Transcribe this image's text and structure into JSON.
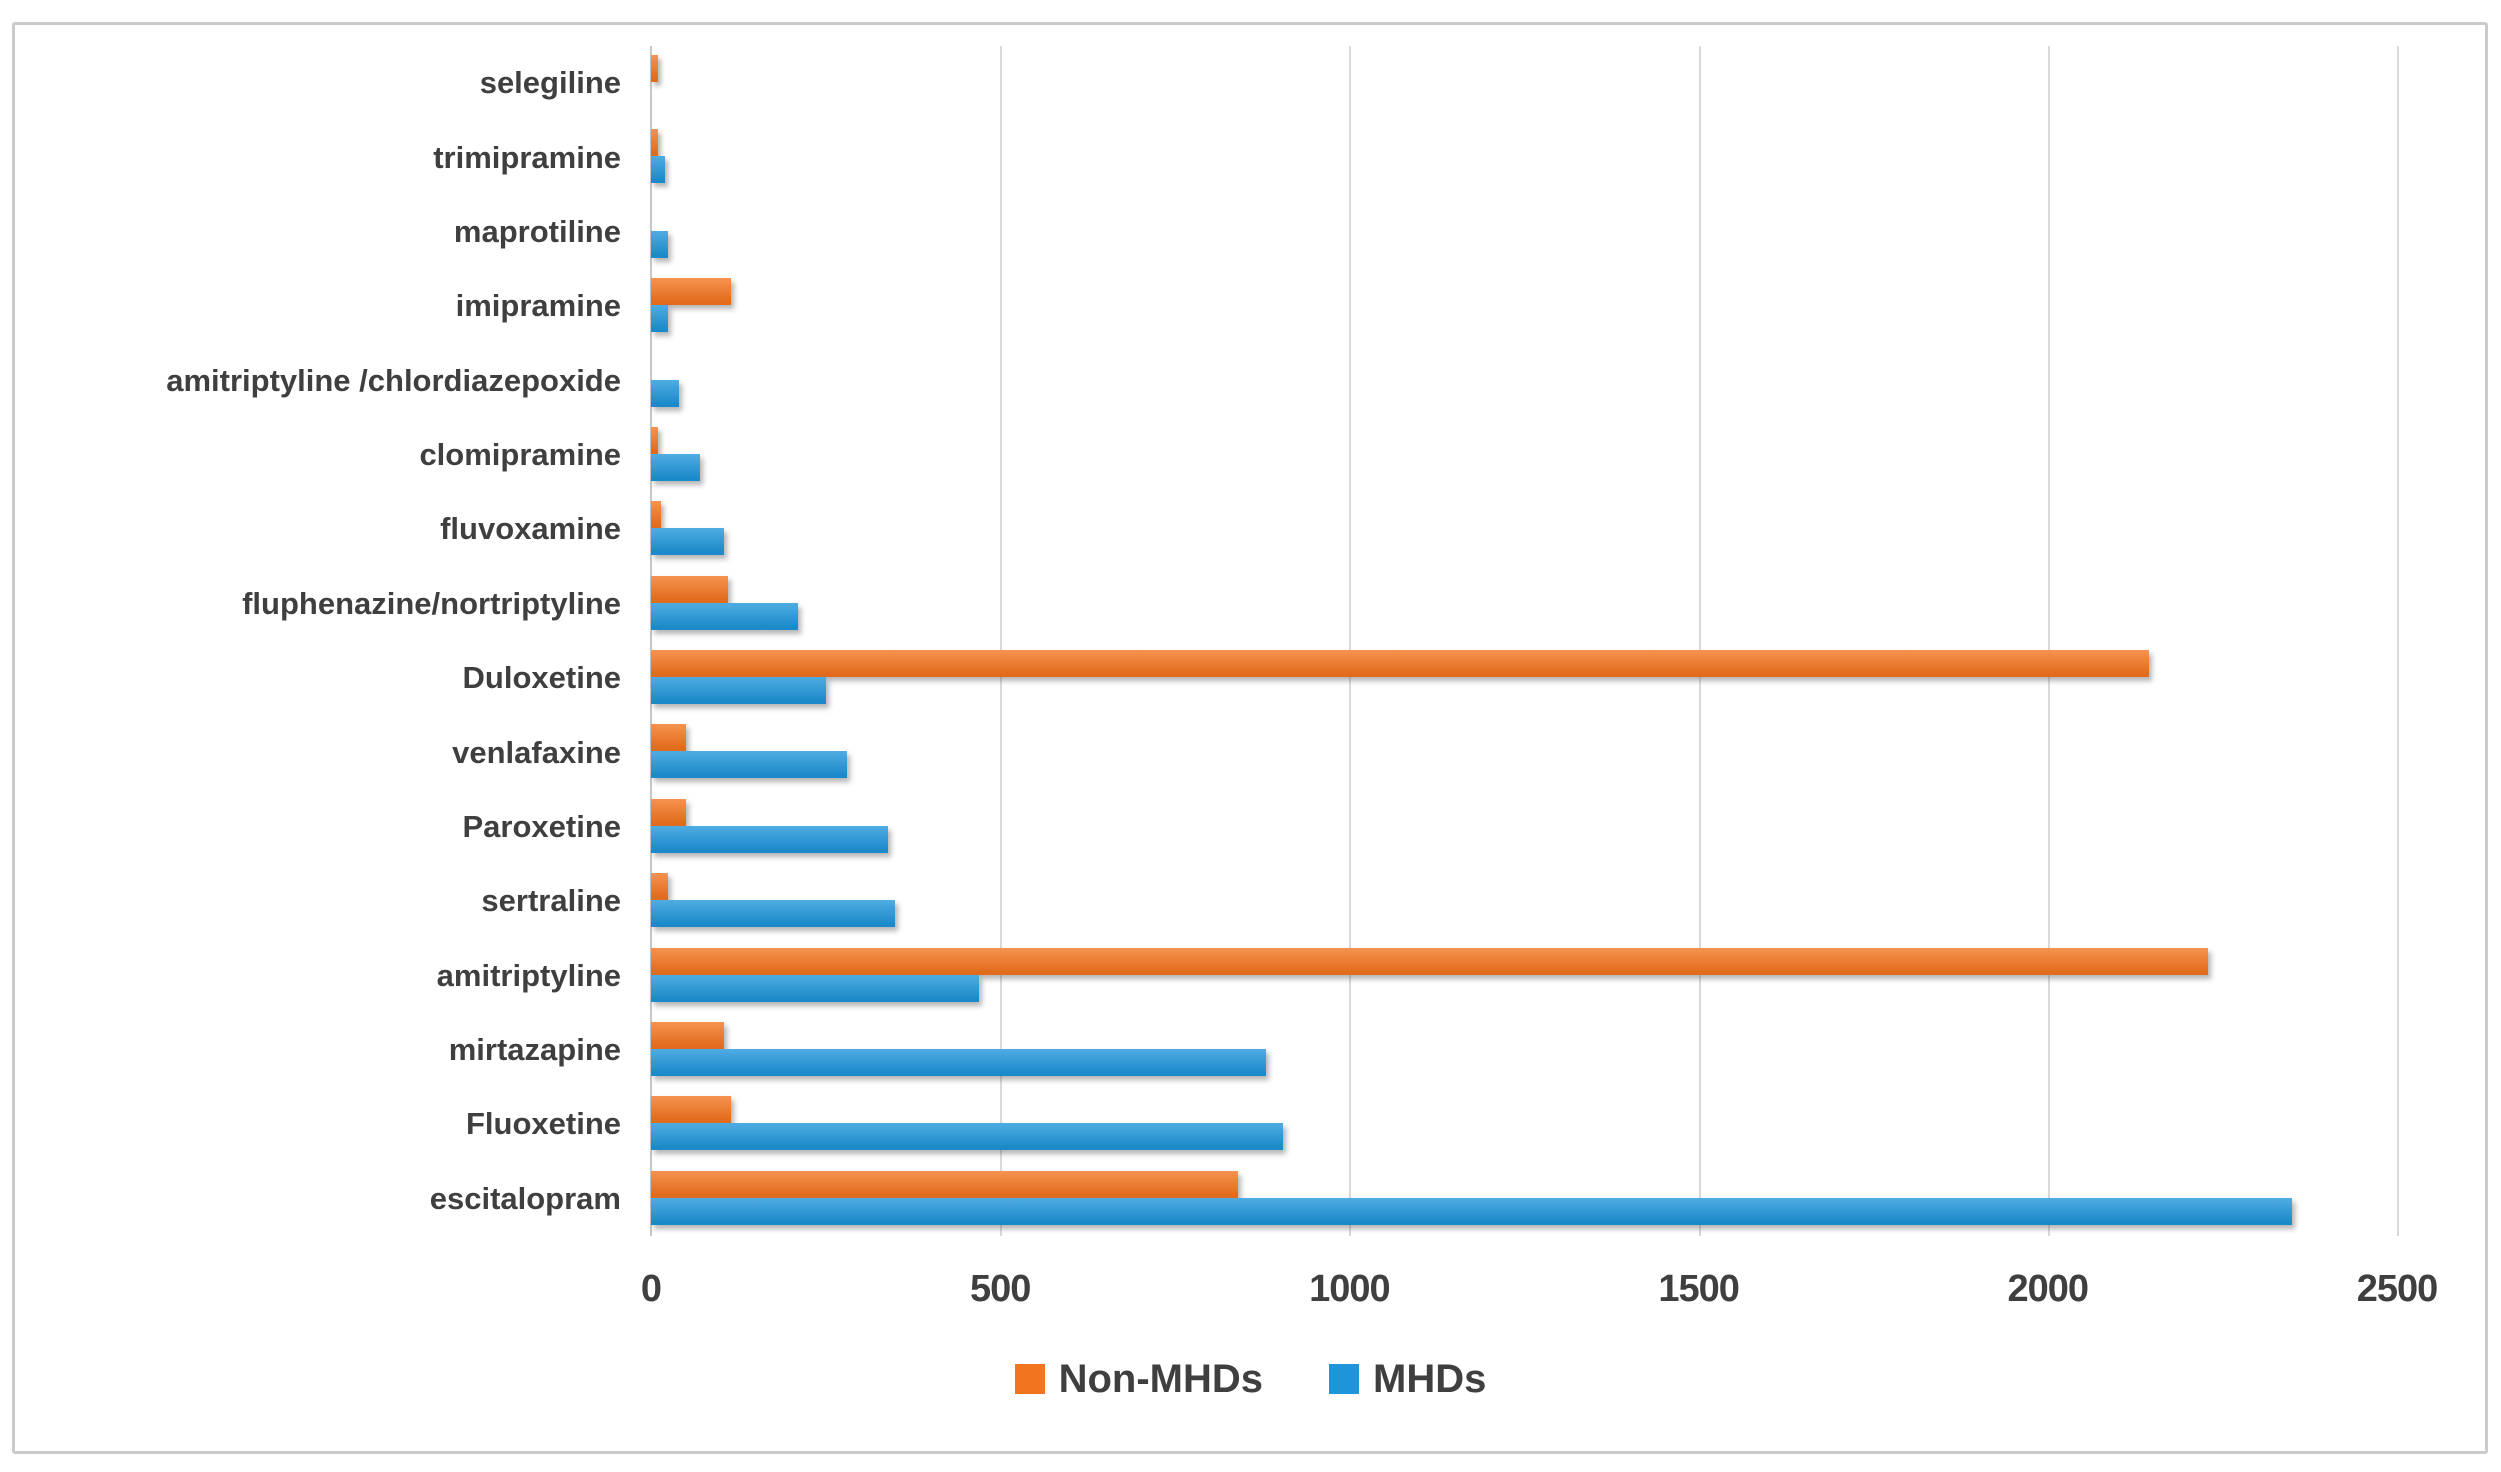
{
  "chart_data": {
    "type": "bar",
    "orientation": "horizontal",
    "title": "",
    "xlabel": "",
    "ylabel": "",
    "xlim": [
      0,
      2500
    ],
    "x_ticks": [
      0,
      500,
      1000,
      1500,
      2000,
      2500
    ],
    "grid": "vertical",
    "legend_position": "bottom",
    "categories_top_to_bottom": [
      "selegiline",
      "trimipramine",
      "maprotiline",
      "imipramine",
      "amitriptyline /chlordiazepoxide",
      "clomipramine",
      "fluvoxamine",
      "fluphenazine/nortriptyline",
      "Duloxetine",
      "venlafaxine",
      "Paroxetine",
      "sertraline",
      "amitriptyline",
      "mirtazapine",
      "Fluoxetine",
      "escitalopram"
    ],
    "series": [
      {
        "name": "Non-MHDs",
        "color": "#f3741f",
        "values": [
          10,
          10,
          0,
          115,
          0,
          10,
          15,
          110,
          2145,
          50,
          50,
          25,
          2230,
          105,
          115,
          840
        ]
      },
      {
        "name": "MHDs",
        "color": "#1e95d9",
        "values": [
          0,
          20,
          25,
          25,
          40,
          70,
          105,
          210,
          250,
          280,
          340,
          350,
          470,
          880,
          905,
          2350
        ]
      }
    ]
  },
  "style_colors": {
    "text": "#3f3f3f",
    "gridline": "#d9d9d9",
    "axis_line": "#c5c6c8",
    "frame_border": "#cbcbcb",
    "background": "#ffffff"
  }
}
